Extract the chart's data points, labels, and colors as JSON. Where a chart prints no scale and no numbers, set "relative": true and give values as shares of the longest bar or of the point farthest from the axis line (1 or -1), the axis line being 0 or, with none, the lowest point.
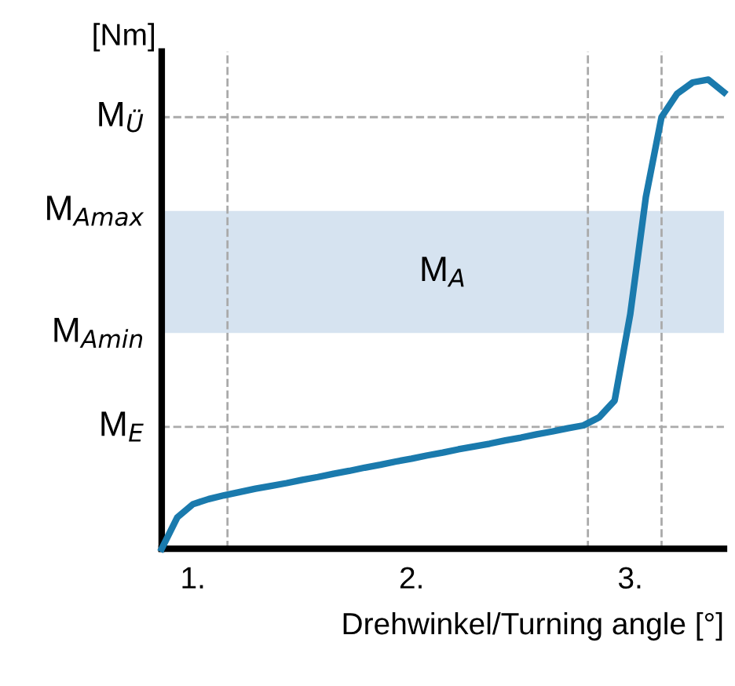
{
  "chart_data": {
    "type": "line",
    "relative": true,
    "ylabel": "[Nm]",
    "xlabel": "Drehwinkel/Turning angle [°]",
    "categories": [
      null,
      null,
      "1.",
      null,
      null,
      null,
      null,
      null,
      null,
      null,
      null,
      null,
      null,
      null,
      null,
      null,
      "2.",
      null,
      null,
      null,
      null,
      null,
      null,
      null,
      null,
      null,
      null,
      null,
      null,
      null,
      "3.",
      null,
      null,
      null,
      null,
      null,
      null
    ],
    "series": [
      {
        "color": "#1a7aad",
        "values": [
          0,
          0.067,
          0.095,
          0.106,
          0.114,
          0.121,
          0.128,
          0.134,
          0.14,
          0.147,
          0.153,
          0.16,
          0.166,
          0.173,
          0.179,
          0.186,
          0.192,
          0.199,
          0.205,
          0.212,
          0.218,
          0.224,
          0.231,
          0.237,
          0.244,
          0.25,
          0.257,
          0.263,
          0.28,
          0.316,
          0.5,
          0.75,
          0.92,
          0.97,
          0.994,
          1.0,
          0.973
        ]
      }
    ],
    "ref_lines": [
      {
        "axis": "y",
        "value": 0.92,
        "label": "M$_{Ü}$",
        "color": "#aaaaaa",
        "line_style": "dashed"
      },
      {
        "axis": "y",
        "value": 0.26,
        "label": "M$_{E}$",
        "color": "#aaaaaa",
        "line_style": "dashed"
      }
    ],
    "bands": [
      {
        "axis": "y",
        "from": 0.46,
        "to": 0.72,
        "label": "M$_{A}$",
        "color": "#d6e3f0"
      }
    ],
    "annotations": [
      "M$_{Amax}$",
      "M$_{Amin}$"
    ],
    "line_style": "solid",
    "marker": "none"
  }
}
